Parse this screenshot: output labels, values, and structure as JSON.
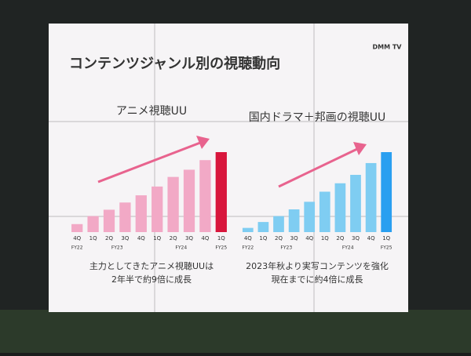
{
  "slide": {
    "title": "コンテンツジャンル別の視聴動向",
    "brand": "DMM TV"
  },
  "chart_data": [
    {
      "type": "bar",
      "title": "アニメ視聴UU",
      "groups": [
        {
          "label": "FY22",
          "categories": [
            "4Q"
          ]
        },
        {
          "label": "FY23",
          "categories": [
            "1Q",
            "2Q",
            "3Q",
            "4Q"
          ]
        },
        {
          "label": "FY24",
          "categories": [
            "1Q",
            "2Q",
            "3Q",
            "4Q"
          ]
        },
        {
          "label": "FY25",
          "categories": [
            "1Q"
          ]
        }
      ],
      "values": [
        10,
        20,
        28,
        37,
        46,
        57,
        69,
        78,
        90,
        100
      ],
      "color": "#f2a9c6",
      "highlight_color": "#d8163c",
      "caption": [
        "主力としてきたアニメ視聴UUは",
        "2年半で約9倍に成長"
      ]
    },
    {
      "type": "bar",
      "title": "国内ドラマ＋邦画の視聴UU",
      "groups": [
        {
          "label": "FY22",
          "categories": [
            "4Q"
          ]
        },
        {
          "label": "FY23",
          "categories": [
            "1Q",
            "2Q",
            "3Q",
            "4Q"
          ]
        },
        {
          "label": "FY24",
          "categories": [
            "1Q",
            "2Q",
            "3Q",
            "4Q"
          ]
        },
        {
          "label": "FY25",
          "categories": [
            "1Q"
          ]
        }
      ],
      "values": [
        5,
        12,
        19,
        27,
        36,
        48,
        58,
        68,
        82,
        95
      ],
      "color": "#7fcdf2",
      "highlight_color": "#2a9ff0",
      "caption": [
        "2023年秋より実写コンテンツを強化",
        "現在までに約4倍に成長"
      ]
    }
  ]
}
